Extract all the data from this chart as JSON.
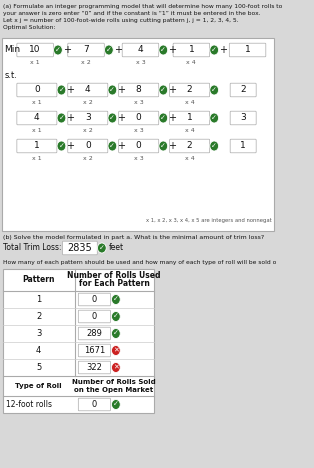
{
  "title_a": "(a) Formulate an integer programming model that will determine how many 100-foot rolls to",
  "title_a2": "your answer is zero enter “0” and if the constant is “1” it must be entered in the box.",
  "title_a3": "Let x j = number of 100-foot-wide rolls using cutting pattern j, j = 1, 2, 3, 4, 5.",
  "title_a4": "Optimal Solution:",
  "min_label": "Min",
  "st_label": "s.t.",
  "min_coefs": [
    "10",
    "7",
    "4",
    "1",
    "1"
  ],
  "min_vars": [
    "x 1",
    "x 2",
    "x 3",
    "x 4",
    ""
  ],
  "min_checks": [
    "green",
    "green",
    "green",
    "green",
    "none"
  ],
  "constraints": [
    {
      "coefs": [
        "0",
        "4",
        "8",
        "2"
      ],
      "rhs": "2",
      "checks": [
        "green",
        "green",
        "green",
        "green"
      ]
    },
    {
      "coefs": [
        "4",
        "3",
        "0",
        "1"
      ],
      "rhs": "3",
      "checks": [
        "green",
        "green",
        "green",
        "green"
      ]
    },
    {
      "coefs": [
        "1",
        "0",
        "0",
        "2"
      ],
      "rhs": "1",
      "checks": [
        "green",
        "green",
        "green",
        "green"
      ]
    }
  ],
  "var_labels": [
    "x 1",
    "x 2",
    "x 3",
    "x 4"
  ],
  "integer_note": "x 1, x 2, x 3, x 4, x 5 are integers and nonnegat",
  "title_b": "(b) Solve the model formulated in part a. What is the minimal amount of trim loss?",
  "trim_loss_label": "Total Trim Loss:",
  "trim_loss_value": "2835",
  "trim_loss_unit": "feet",
  "table_note": "How many of each pattern should be used and how many of each type of roll will be sold o",
  "table_header1": "Number of Rolls Used",
  "table_header2": "for Each Pattern",
  "table_col_pattern": "Pattern",
  "patterns": [
    1,
    2,
    3,
    4,
    5
  ],
  "pattern_values": [
    "0",
    "0",
    "289",
    "1671",
    "322"
  ],
  "pattern_icons": [
    "green",
    "green",
    "green",
    "red",
    "red"
  ],
  "rolls_header1": "Number of Rolls Sold",
  "rolls_header2": "on the Open Market",
  "rolls_type_label": "Type of Roll",
  "rolls_type": "12-foot rolls",
  "rolls_value": "0",
  "rolls_icon": "green",
  "bg_color": "#d8d8d8",
  "box_color": "#f5f5f5",
  "white": "#ffffff",
  "green_color": "#2a7a2a",
  "red_color": "#cc2222",
  "border_color": "#aaaaaa",
  "text_color": "#111111",
  "subtext_color": "#555555"
}
